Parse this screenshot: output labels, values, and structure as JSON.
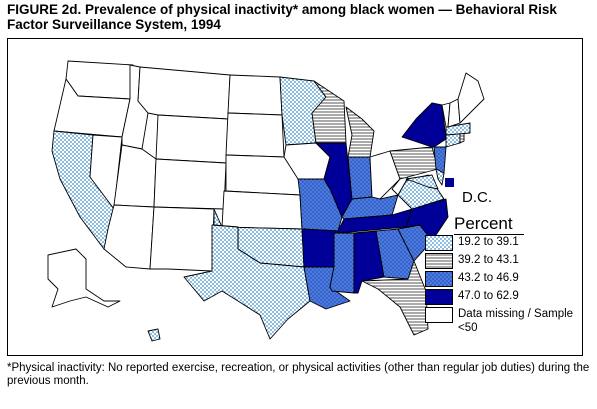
{
  "title": "FIGURE 2d. Prevalence of physical inactivity* among black women — Behavioral Risk Factor Surveillance System, 1994",
  "legend": {
    "title": "Percent",
    "items": [
      {
        "label": "19.2 to 39.1",
        "category": "c1",
        "color": "#c9e6f5"
      },
      {
        "label": "39.2 to 43.1",
        "category": "c2",
        "color": "#ffffff"
      },
      {
        "label": "43.2 to 46.9",
        "category": "c3",
        "color": "#4472d9"
      },
      {
        "label": "47.0 to 62.9",
        "category": "c4",
        "color": "#000099"
      },
      {
        "label": "Data missing / Sample <50",
        "category": "c0",
        "color": "#ffffff"
      }
    ]
  },
  "dc_label": "D.C.",
  "footnote": "*Physical inactivity: No reported exercise, recreation, or physical activities (other than regular job duties) during the previous month.",
  "map_data": {
    "type": "choropleth",
    "region": "United States",
    "states": {
      "WA": "c0",
      "OR": "c0",
      "CA": "c1",
      "NV": "c0",
      "ID": "c0",
      "MT": "c0",
      "WY": "c0",
      "UT": "c0",
      "AZ": "c0",
      "CO": "c0",
      "NM": "c0",
      "ND": "c0",
      "SD": "c0",
      "NE": "c0",
      "KS": "c0",
      "OK": "c1",
      "TX": "c1",
      "MN": "c1",
      "IA": "c0",
      "MO": "c3",
      "AR": "c4",
      "LA": "c3",
      "WI": "c2",
      "IL": "c4",
      "MI": "c2",
      "IN": "c3",
      "OH": "c0",
      "KY": "c3",
      "TN": "c4",
      "MS": "c3",
      "AL": "c4",
      "GA": "c3",
      "FL": "c2",
      "SC": "c3",
      "NC": "c4",
      "VA": "c1",
      "WV": "c0",
      "PA": "c2",
      "NY": "c4",
      "NJ": "c3",
      "DE": "c1",
      "MD": "c1",
      "CT": "c1",
      "RI": "c2",
      "MA": "c1",
      "VT": "c0",
      "NH": "c0",
      "ME": "c0",
      "AK": "c0",
      "HI": "c1",
      "DC": "c4"
    }
  }
}
